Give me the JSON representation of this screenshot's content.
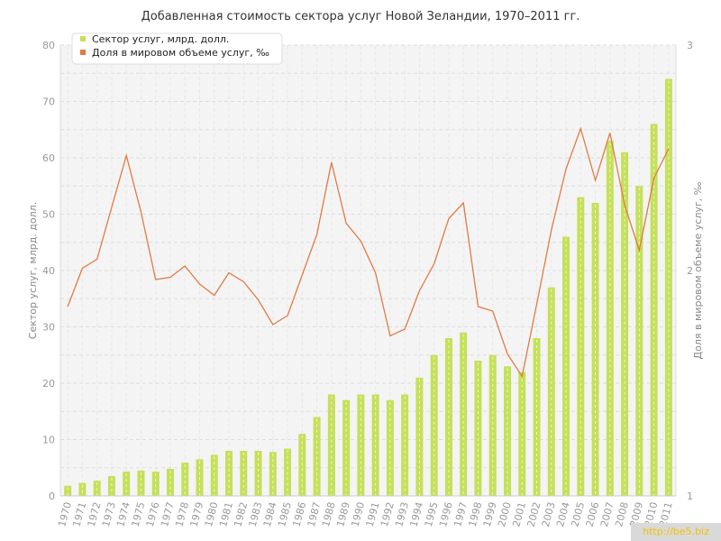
{
  "chart_data": {
    "type": "bar+line",
    "title": "Добавленная стоимость сектора услуг Новой Зеландии, 1970–2011 гг.",
    "ylabel_left": "Сектор услуг, млрд. долл.",
    "ylabel_right": "Доля в мировом объеме услуг, ‰",
    "ylim_left": [
      0,
      80
    ],
    "yticks_left": [
      "0",
      "10",
      "20",
      "30",
      "40",
      "50",
      "60",
      "70",
      "80"
    ],
    "ylim_right": [
      1,
      3
    ],
    "yticks_right": [
      "1",
      "2",
      "3"
    ],
    "categories": [
      "1970",
      "1971",
      "1972",
      "1973",
      "1974",
      "1975",
      "1976",
      "1977",
      "1978",
      "1979",
      "1980",
      "1981",
      "1982",
      "1983",
      "1984",
      "1985",
      "1986",
      "1987",
      "1988",
      "1989",
      "1990",
      "1991",
      "1992",
      "1993",
      "1994",
      "1995",
      "1996",
      "1997",
      "1998",
      "1999",
      "2000",
      "2001",
      "2002",
      "2003",
      "2004",
      "2005",
      "2006",
      "2007",
      "2008",
      "2009",
      "2010",
      "2011"
    ],
    "grid": true,
    "legend_position": "top-left",
    "series": [
      {
        "name": "Сектор услуг, млрд. долл.",
        "kind": "bar",
        "axis": "left",
        "color": "#c5e05a",
        "values": [
          1.8,
          2.3,
          2.7,
          3.5,
          4.3,
          4.5,
          4.3,
          4.8,
          5.9,
          6.5,
          7.3,
          8.0,
          8.0,
          8.0,
          7.8,
          8.4,
          11,
          14,
          18,
          17,
          18,
          18,
          17,
          18,
          21,
          25,
          28,
          29,
          24,
          25,
          23,
          22,
          28,
          37,
          46,
          53,
          52,
          63,
          61,
          55,
          66,
          74
        ]
      },
      {
        "name": "Доля в мировом объеме услуг, ‰",
        "kind": "line",
        "axis": "right",
        "color": "#e07b45",
        "values": [
          1.84,
          2.01,
          2.05,
          2.28,
          2.51,
          2.26,
          1.96,
          1.97,
          2.02,
          1.94,
          1.89,
          1.99,
          1.95,
          1.87,
          1.76,
          1.8,
          1.98,
          2.16,
          2.48,
          2.21,
          2.13,
          1.99,
          1.71,
          1.74,
          1.91,
          2.03,
          2.23,
          2.3,
          1.84,
          1.82,
          1.63,
          1.53,
          1.85,
          2.18,
          2.45,
          2.63,
          2.4,
          2.61,
          2.29,
          2.09,
          2.41,
          2.54
        ]
      }
    ]
  },
  "watermark": "http://be5.biz"
}
